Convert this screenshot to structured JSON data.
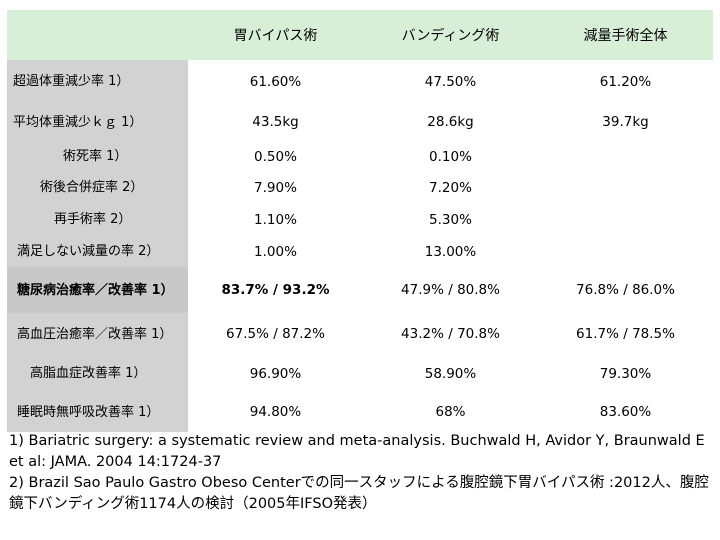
{
  "table": {
    "headers": [
      "",
      "胃バイパス術",
      "バンディング術",
      "減量手術全体"
    ],
    "rows": [
      {
        "label": "超過体重減少率 1）",
        "values": [
          "61.60%",
          "47.50%",
          "61.20%"
        ]
      },
      {
        "label": "平均体重減少ｋｇ 1）",
        "values": [
          "43.5kg",
          "28.6kg",
          "39.7kg"
        ]
      },
      {
        "label": "術死率 1）",
        "values": [
          "0.50%",
          "0.10%",
          ""
        ]
      },
      {
        "label": "術後合併症率 2）",
        "values": [
          "7.90%",
          "7.20%",
          ""
        ]
      },
      {
        "label": "再手術率 2）",
        "values": [
          "1.10%",
          "5.30%",
          ""
        ]
      },
      {
        "label": "満足しない減量の率 2）",
        "values": [
          "1.00%",
          "13.00%",
          ""
        ]
      },
      {
        "label": "糖尿病治癒率／改善率 1）",
        "values": [
          "83.7% / 93.2%",
          "47.9% / 80.8%",
          "76.8% / 86.0%"
        ]
      },
      {
        "label": "高血圧治癒率／改善率 1）",
        "values": [
          "67.5% / 87.2%",
          "43.2% / 70.8%",
          "61.7% / 78.5%"
        ]
      },
      {
        "label": "高脂血症改善率 1）",
        "values": [
          "96.90%",
          "58.90%",
          "79.30%"
        ]
      },
      {
        "label": "睡眠時無呼吸改善率 1）",
        "values": [
          "94.80%",
          "68%",
          "83.60%"
        ]
      }
    ]
  },
  "footnotes": [
    "1) Bariatric surgery: a systematic review and meta-analysis. Buchwald H, Avidor Y, Braunwald E et al: JAMA. 2004 14:1724-37",
    "2) Brazil Sao Paulo Gastro Obeso Centerでの同一スタッフによる腹腔鏡下胃バイパス術 :2012人、腹腔鏡下バンディング術1174人の検討（2005年IFSO発表）"
  ]
}
